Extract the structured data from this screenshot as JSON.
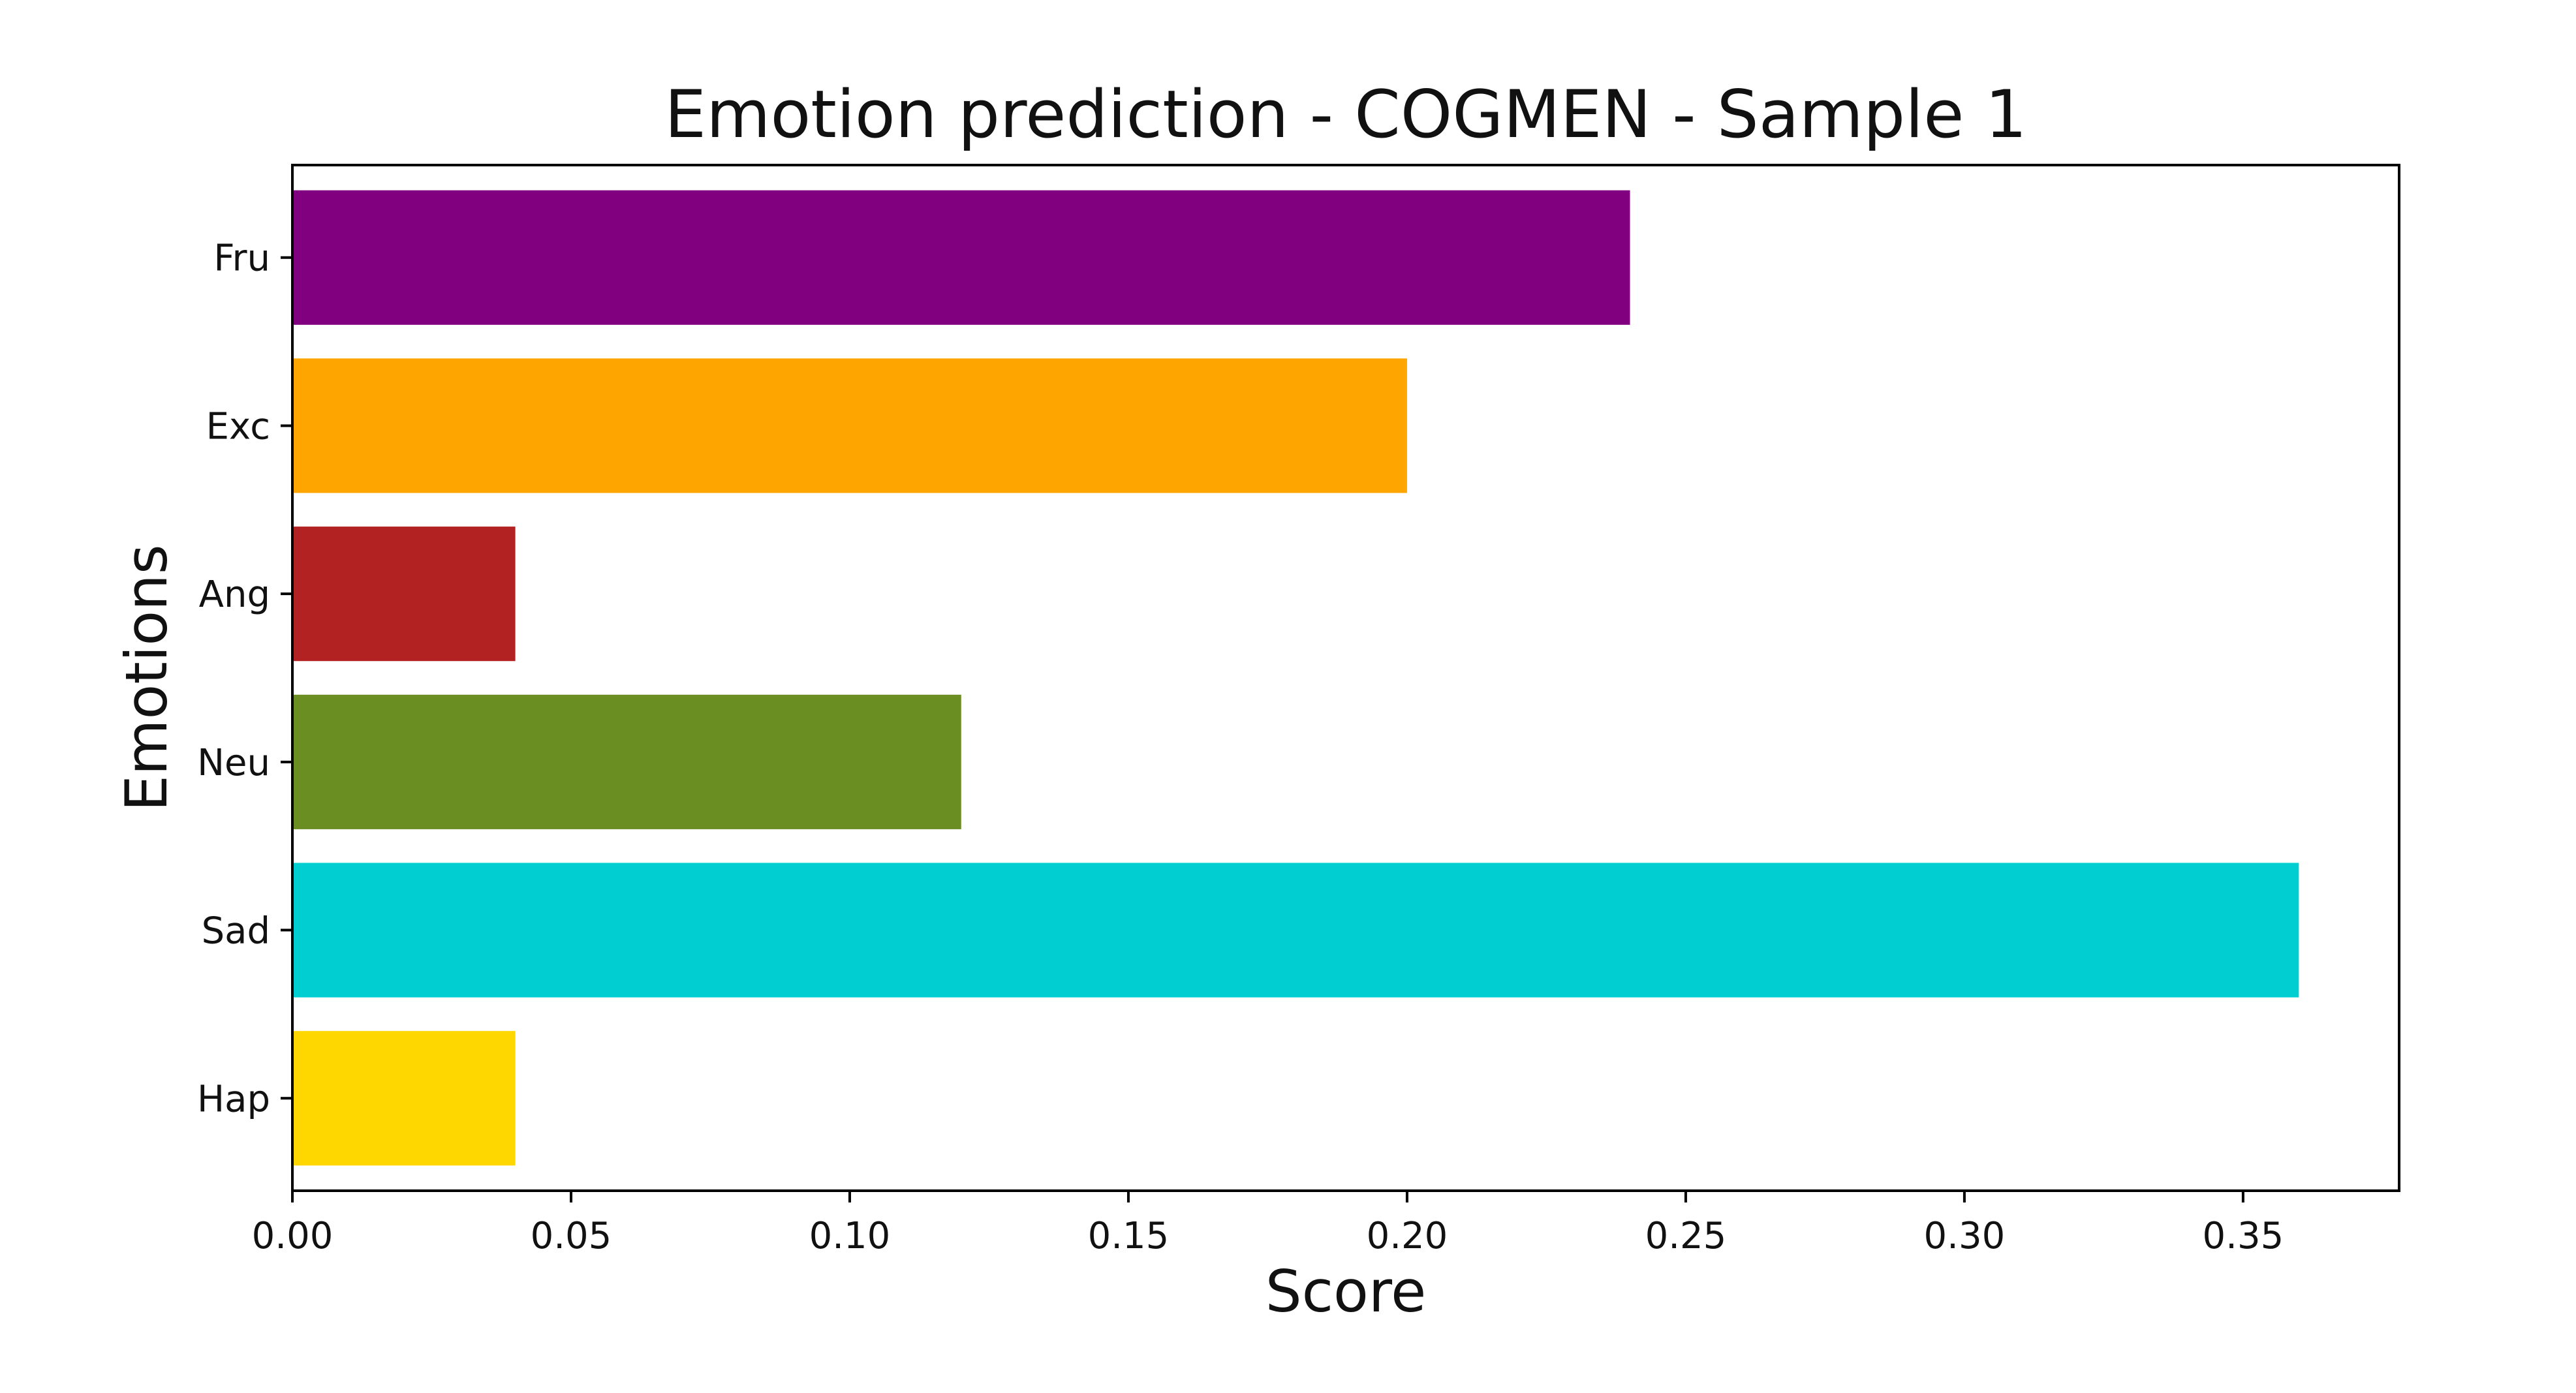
{
  "chart_data": {
    "type": "bar",
    "orientation": "horizontal",
    "title": "Emotion prediction - COGMEN - Sample 1",
    "xlabel": "Score",
    "ylabel": "Emotions",
    "categories": [
      "Hap",
      "Sad",
      "Neu",
      "Ang",
      "Exc",
      "Fru"
    ],
    "values": [
      0.04,
      0.36,
      0.12,
      0.04,
      0.2,
      0.24
    ],
    "colors": [
      "#ffd700",
      "#00ced1",
      "#6b8e23",
      "#b22222",
      "#ffa500",
      "#800080"
    ],
    "xlim": [
      0,
      0.378
    ],
    "xticks": [
      0.0,
      0.05,
      0.1,
      0.15,
      0.2,
      0.25,
      0.3,
      0.35
    ],
    "xtick_labels": [
      "0.00",
      "0.05",
      "0.10",
      "0.15",
      "0.20",
      "0.25",
      "0.30",
      "0.35"
    ],
    "grid": false,
    "legend": "none"
  }
}
